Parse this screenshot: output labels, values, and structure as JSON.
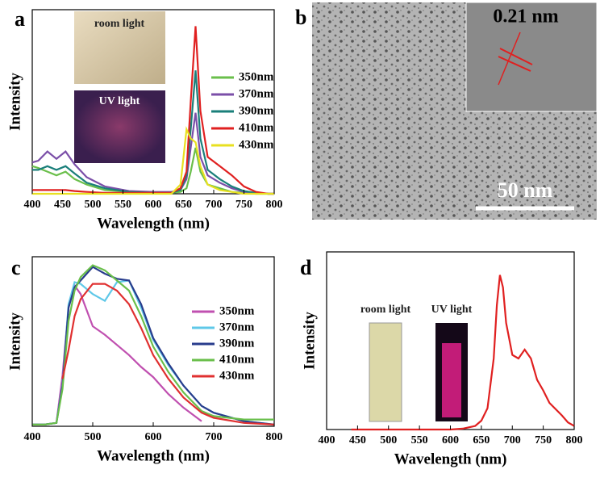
{
  "chart_data": [
    {
      "type": "line",
      "label": "a",
      "xlabel": "Wavelength (nm)",
      "ylabel": "Intensity",
      "annotations": [
        "room light",
        "UV light"
      ],
      "x": [
        400,
        410,
        425,
        440,
        455,
        470,
        490,
        520,
        560,
        600,
        630,
        645,
        655,
        662,
        670,
        678,
        690,
        710,
        730,
        750,
        770,
        790,
        800
      ],
      "xlim": [
        400,
        800
      ],
      "xticks": [
        400,
        450,
        500,
        550,
        600,
        650,
        700,
        750,
        800
      ],
      "ylim": [
        0,
        100
      ],
      "series": [
        {
          "name": "350nm",
          "color": "#6abf4b",
          "values": [
            15,
            14,
            12,
            10,
            12,
            8,
            5,
            2,
            1,
            0.5,
            0.5,
            1,
            3,
            12,
            25,
            12,
            5,
            3,
            1,
            0.5,
            0,
            0,
            0
          ]
        },
        {
          "name": "370nm",
          "color": "#7b4fa8",
          "values": [
            17,
            18,
            23,
            19,
            23,
            16,
            9,
            4,
            1.5,
            1,
            1,
            2,
            8,
            25,
            44,
            20,
            10,
            6,
            3,
            1,
            0.5,
            0,
            0
          ]
        },
        {
          "name": "390nm",
          "color": "#1a7f7a",
          "values": [
            13,
            13,
            15,
            13,
            15,
            11,
            6,
            3,
            1,
            0.5,
            0.5,
            2,
            10,
            35,
            67,
            30,
            13,
            8,
            4,
            1.5,
            0.5,
            0,
            0
          ]
        },
        {
          "name": "410nm",
          "color": "#e02020",
          "values": [
            2,
            2,
            2,
            2,
            2,
            1.5,
            1,
            0.5,
            0.5,
            0.5,
            0.5,
            3,
            12,
            50,
            91,
            45,
            20,
            15,
            10,
            4,
            1,
            0,
            0
          ]
        },
        {
          "name": "430nm",
          "color": "#e8e020",
          "values": [
            0,
            0,
            0,
            0,
            0,
            0,
            0,
            0,
            0,
            0,
            0,
            5,
            35,
            30,
            28,
            15,
            5,
            2,
            1,
            0,
            0,
            0,
            0
          ]
        }
      ]
    },
    {
      "type": "line",
      "label": "c",
      "xlabel": "Wavelength (nm)",
      "ylabel": "Intensity",
      "x": [
        400,
        420,
        440,
        450,
        460,
        470,
        480,
        500,
        520,
        540,
        560,
        580,
        600,
        625,
        650,
        680,
        700,
        750,
        800
      ],
      "xlim": [
        400,
        800
      ],
      "xticks": [
        400,
        500,
        600,
        700,
        800
      ],
      "ylim": [
        0,
        100
      ],
      "series": [
        {
          "name": "350nm",
          "color": "#c050b0",
          "values": [
            1,
            1,
            2,
            30,
            70,
            83,
            78,
            59,
            54,
            48,
            42,
            35,
            29,
            19,
            11,
            3,
            null,
            null,
            null
          ]
        },
        {
          "name": "370nm",
          "color": "#5fc8e8",
          "values": [
            1,
            1,
            2,
            25,
            72,
            85,
            84,
            78,
            74,
            85,
            86,
            70,
            51,
            36,
            24,
            12,
            8,
            3,
            1
          ]
        },
        {
          "name": "390nm",
          "color": "#283c8c",
          "values": [
            1,
            1,
            2,
            24,
            70,
            82,
            86,
            94,
            90,
            87,
            86,
            72,
            52,
            37,
            24,
            12,
            8,
            3,
            1
          ]
        },
        {
          "name": "410nm",
          "color": "#6abf4b",
          "values": [
            1,
            1,
            2,
            22,
            62,
            80,
            88,
            95,
            92,
            86,
            80,
            65,
            47,
            32,
            20,
            9,
            6,
            4,
            4
          ]
        },
        {
          "name": "430nm",
          "color": "#e03030",
          "values": [
            null,
            null,
            null,
            28,
            45,
            65,
            75,
            84,
            84,
            80,
            72,
            58,
            42,
            28,
            17,
            8,
            5,
            2,
            1
          ]
        }
      ]
    },
    {
      "type": "line",
      "label": "d",
      "xlabel": "Wavelength (nm)",
      "ylabel": "Intensity",
      "annotations": [
        "room light",
        "UV light"
      ],
      "x": [
        440,
        500,
        550,
        600,
        620,
        640,
        650,
        660,
        670,
        675,
        680,
        685,
        690,
        700,
        710,
        720,
        730,
        740,
        750,
        760,
        780,
        790,
        800
      ],
      "xlim": [
        400,
        800
      ],
      "xticks": [
        400,
        450,
        500,
        550,
        600,
        650,
        700,
        750,
        800
      ],
      "ylim": [
        0,
        100
      ],
      "series": [
        {
          "color": "#e02020",
          "values": [
            0,
            0,
            0,
            0,
            0.5,
            2,
            5,
            12,
            40,
            70,
            87,
            80,
            60,
            42,
            40,
            45,
            40,
            28,
            22,
            15,
            8,
            4,
            2
          ]
        }
      ]
    }
  ],
  "image_panel": {
    "label": "b",
    "lattice": "0.21 nm",
    "scale_bar": "50 nm"
  }
}
